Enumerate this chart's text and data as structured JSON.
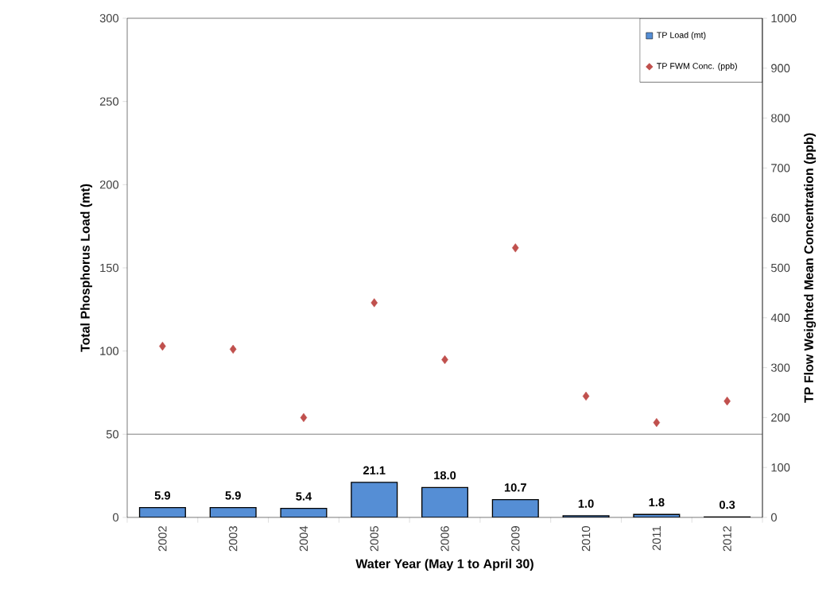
{
  "chart_data": {
    "type": "bar",
    "categories": [
      "2002",
      "2003",
      "2004",
      "2005",
      "2006",
      "2009",
      "2010",
      "2011",
      "2012"
    ],
    "series": [
      {
        "name": "TP Load (mt)",
        "color": "#558ed5",
        "values": [
          5.9,
          5.9,
          5.4,
          21.1,
          18.0,
          10.7,
          1.0,
          1.8,
          0.3
        ],
        "value_labels": [
          "5.9",
          "5.9",
          "5.4",
          "21.1",
          "18.0",
          "10.7",
          "1.0",
          "1.8",
          "0.3"
        ]
      },
      {
        "name": "TP FWM Conc. (ppb)",
        "type": "scatter",
        "axis": "y2",
        "color": "#c0504d",
        "marker": "diamond",
        "values": [
          343,
          337,
          200,
          430,
          316,
          540,
          243,
          190,
          233
        ]
      }
    ],
    "xlabel": "Water Year (May 1 to April 30)",
    "ylabel": "Total Phosphorus Load (mt)",
    "y2label": "TP Flow Weighted Mean Concentration (ppb)",
    "ylim": [
      0,
      300
    ],
    "yticks": [
      0,
      50,
      100,
      150,
      200,
      250,
      300
    ],
    "y2lim": [
      0,
      1000
    ],
    "y2ticks": [
      0,
      100,
      200,
      300,
      400,
      500,
      600,
      700,
      800,
      900,
      1000
    ],
    "ref_lines": [
      {
        "axis": "y",
        "value": 50,
        "color": "#808080"
      }
    ],
    "legend": "top right"
  }
}
